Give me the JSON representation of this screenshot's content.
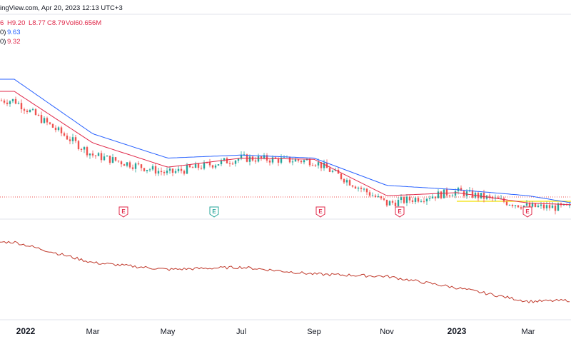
{
  "header": {
    "source": "ingView.com, Apr 20, 2023 12:13 UTC+3",
    "ohlc_prefix": "6",
    "high": "H9.20",
    "low": "L8.77",
    "close": "C8.79",
    "volume": "Vol60.656M",
    "ma1_prefix": "0)",
    "ma1_value": "9.63",
    "ma2_prefix": "0)",
    "ma2_value": "9.32"
  },
  "colors": {
    "up": "#26a69a",
    "down": "#ef5350",
    "ma_slow": "#2962ff",
    "ma_fast": "#e0294a",
    "support_line": "#f2e100",
    "indicator": "#c0392b",
    "earnings_red": "#e0294a",
    "earnings_green": "#26a69a"
  },
  "x_axis": {
    "labels": [
      "2022",
      "Mar",
      "May",
      "Jul",
      "Sep",
      "Nov",
      "2023",
      "Mar"
    ],
    "bold": [
      "2022",
      "2023"
    ]
  },
  "earnings_markers": [
    {
      "label": "E",
      "color": "red"
    },
    {
      "label": "E",
      "color": "green"
    },
    {
      "label": "E",
      "color": "red"
    },
    {
      "label": "E",
      "color": "red"
    },
    {
      "label": "E",
      "color": "red"
    }
  ],
  "chart_data": {
    "type": "line",
    "title": "",
    "xlabel": "",
    "ylabel": "",
    "x": [
      "2022",
      "Mar",
      "May",
      "Jul",
      "Sep",
      "Nov",
      "2023",
      "Mar",
      "Apr 20"
    ],
    "series": [
      {
        "values": [
          26.5,
          17.5,
          14.5,
          17.0,
          16.5,
          9.5,
          11.5,
          9.0,
          8.8
        ]
      },
      {
        "values": [
          30.0,
          21.0,
          17.0,
          17.5,
          17.0,
          12.5,
          11.8,
          10.8,
          9.63
        ]
      },
      {
        "values": [
          28.0,
          19.5,
          15.5,
          17.0,
          16.8,
          10.8,
          11.3,
          9.6,
          9.32
        ]
      },
      {
        "values": [
          88,
          70,
          64,
          66,
          60,
          58,
          48,
          36,
          37
        ]
      }
    ],
    "last_close": 8.79,
    "grid": false,
    "legend": "top-left"
  }
}
